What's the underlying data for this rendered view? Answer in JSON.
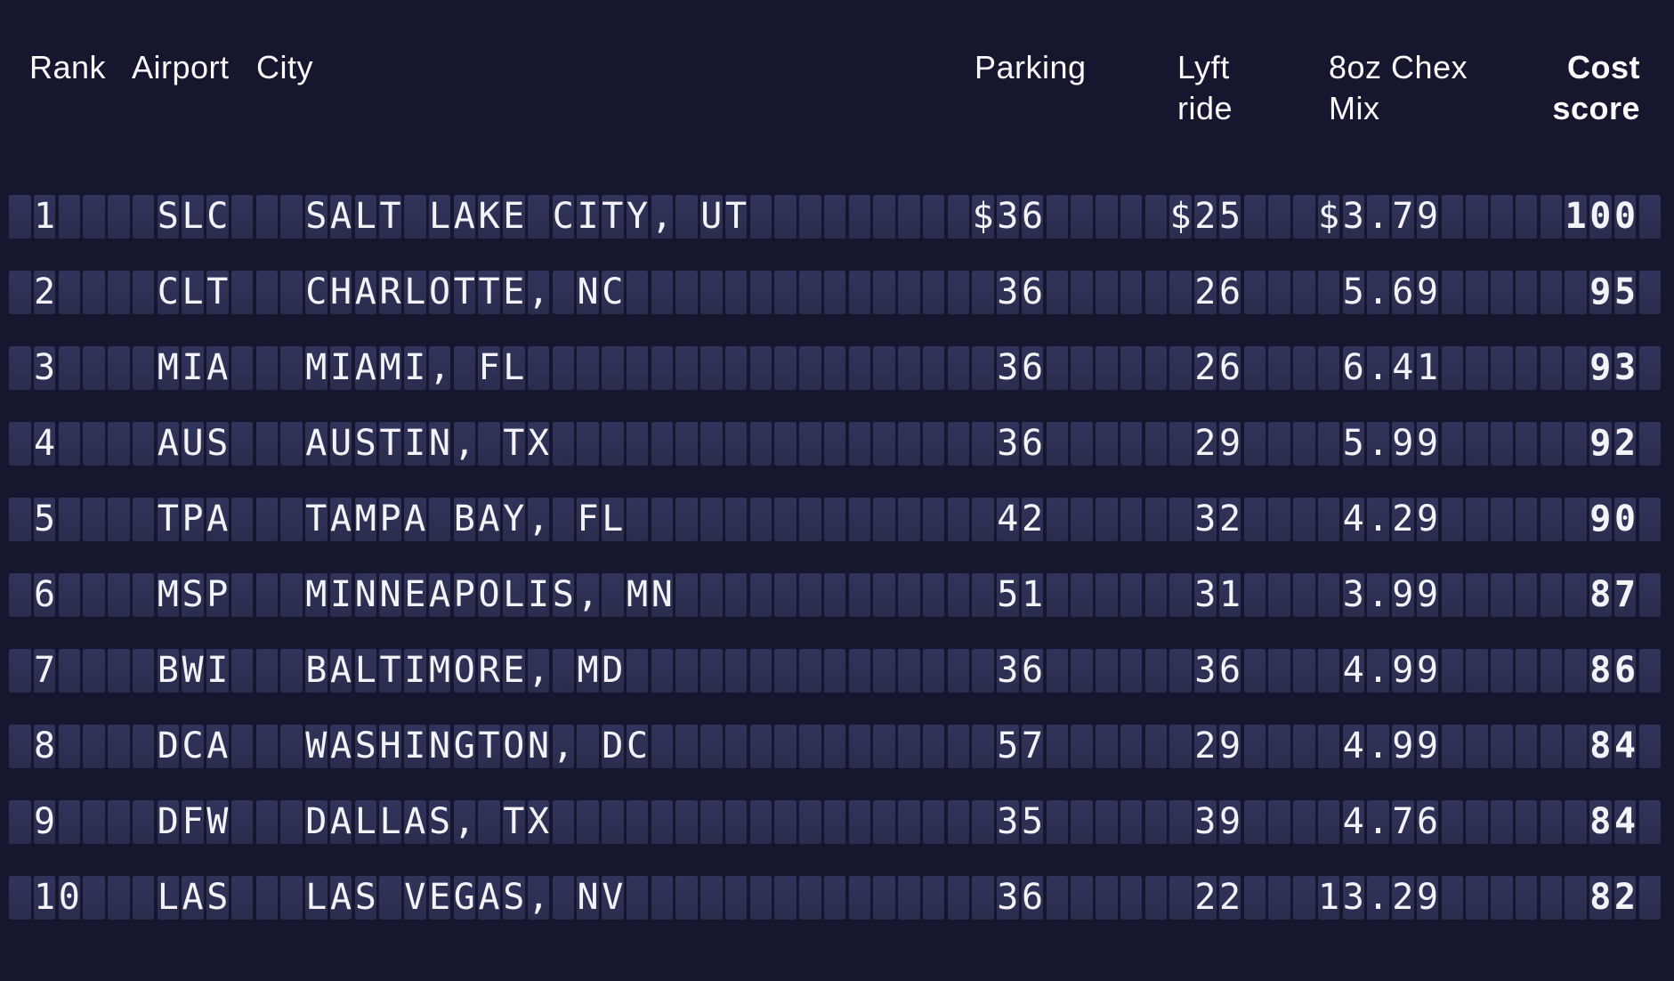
{
  "header": {
    "rank": "Rank",
    "airport": "Airport",
    "city": "City",
    "parking": "Parking",
    "lyft_line1": "Lyft",
    "lyft_line2": "ride",
    "chex_line1": "8oz Chex",
    "chex_line2": "Mix",
    "cost_line1": "Cost",
    "cost_line2": "score"
  },
  "colors": {
    "background": "#16172f",
    "flap_cell": "#2d3051",
    "text": "#f3f4f8"
  },
  "rows": [
    {
      "rank": "1",
      "airport": "SLC",
      "city": "SALT LAKE CITY, UT",
      "parking": "$36",
      "lyft": "$25",
      "chex": "$3.79",
      "cost": "100"
    },
    {
      "rank": "2",
      "airport": "CLT",
      "city": "CHARLOTTE, NC",
      "parking": "36",
      "lyft": "26",
      "chex": "5.69",
      "cost": "95"
    },
    {
      "rank": "3",
      "airport": "MIA",
      "city": "MIAMI, FL",
      "parking": "36",
      "lyft": "26",
      "chex": "6.41",
      "cost": "93"
    },
    {
      "rank": "4",
      "airport": "AUS",
      "city": "AUSTIN, TX",
      "parking": "36",
      "lyft": "29",
      "chex": "5.99",
      "cost": "92"
    },
    {
      "rank": "5",
      "airport": "TPA",
      "city": "TAMPA BAY, FL",
      "parking": "42",
      "lyft": "32",
      "chex": "4.29",
      "cost": "90"
    },
    {
      "rank": "6",
      "airport": "MSP",
      "city": "MINNEAPOLIS, MN",
      "parking": "51",
      "lyft": "31",
      "chex": "3.99",
      "cost": "87"
    },
    {
      "rank": "7",
      "airport": "BWI",
      "city": "BALTIMORE, MD",
      "parking": "36",
      "lyft": "36",
      "chex": "4.99",
      "cost": "86"
    },
    {
      "rank": "8",
      "airport": "DCA",
      "city": "WASHINGTON, DC",
      "parking": "57",
      "lyft": "29",
      "chex": "4.99",
      "cost": "84"
    },
    {
      "rank": "9",
      "airport": "DFW",
      "city": "DALLAS, TX",
      "parking": "35",
      "lyft": "39",
      "chex": "4.76",
      "cost": "84"
    },
    {
      "rank": "10",
      "airport": "LAS",
      "city": "LAS VEGAS, NV",
      "parking": "36",
      "lyft": "22",
      "chex": "13.29",
      "cost": "82"
    }
  ],
  "chart_data": {
    "type": "table",
    "title": "",
    "columns": [
      "Rank",
      "Airport",
      "City",
      "Parking",
      "Lyft ride",
      "8oz Chex Mix",
      "Cost score"
    ],
    "rows": [
      [
        "1",
        "SLC",
        "SALT LAKE CITY, UT",
        "$36",
        "$25",
        "$3.79",
        "100"
      ],
      [
        "2",
        "CLT",
        "CHARLOTTE, NC",
        "36",
        "26",
        "5.69",
        "95"
      ],
      [
        "3",
        "MIA",
        "MIAMI, FL",
        "36",
        "26",
        "6.41",
        "93"
      ],
      [
        "4",
        "AUS",
        "AUSTIN, TX",
        "36",
        "29",
        "5.99",
        "92"
      ],
      [
        "5",
        "TPA",
        "TAMPA BAY, FL",
        "42",
        "32",
        "4.29",
        "90"
      ],
      [
        "6",
        "MSP",
        "MINNEAPOLIS, MN",
        "51",
        "31",
        "3.99",
        "87"
      ],
      [
        "7",
        "BWI",
        "BALTIMORE, MD",
        "36",
        "36",
        "4.99",
        "86"
      ],
      [
        "8",
        "DCA",
        "WASHINGTON, DC",
        "57",
        "29",
        "4.99",
        "84"
      ],
      [
        "9",
        "DFW",
        "DALLAS, TX",
        "35",
        "39",
        "4.76",
        "84"
      ],
      [
        "10",
        "LAS",
        "LAS VEGAS, NV",
        "36",
        "22",
        "13.29",
        "82"
      ]
    ],
    "layout_hints": {
      "style": "split-flap airport departure board",
      "numeric_columns_right_aligned": true,
      "dollar_signs_on_first_row_only": true,
      "cost_score_bold": true
    }
  }
}
